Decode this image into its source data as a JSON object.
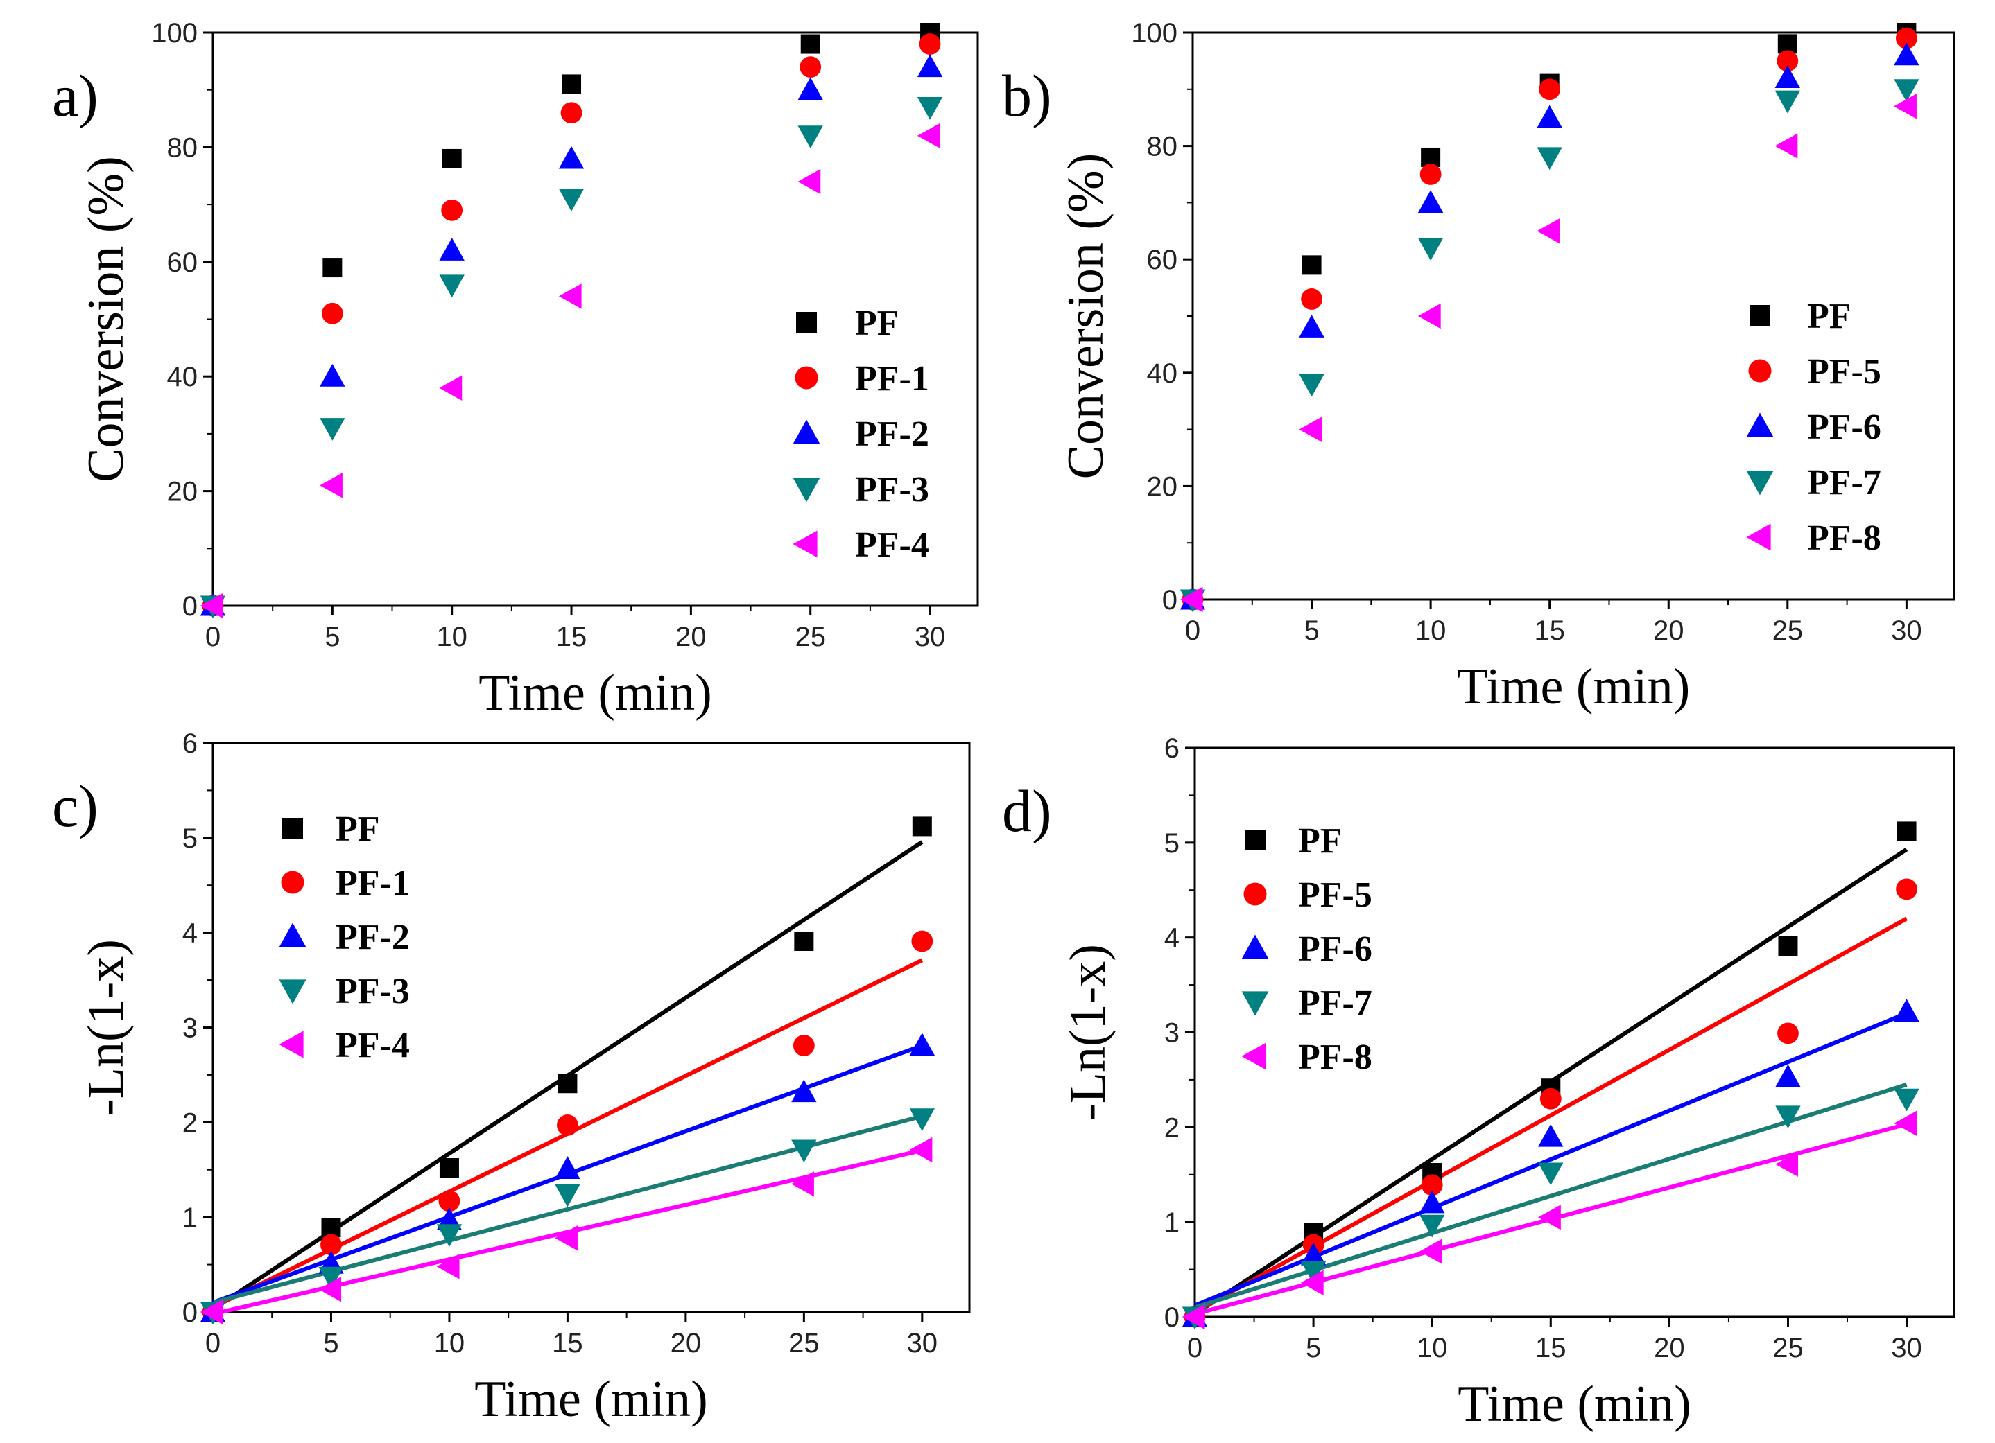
{
  "chart_data": [
    {
      "type": "scatter",
      "panel_label": "a)",
      "xlabel": "Time (min)",
      "ylabel": "Conversion (%)",
      "xlim": [
        0,
        32
      ],
      "ylim": [
        0,
        100
      ],
      "xticks": [
        0,
        5,
        10,
        15,
        20,
        25,
        30
      ],
      "yticks": [
        0,
        20,
        40,
        60,
        80,
        100
      ],
      "legend_position": "middle-right",
      "series": [
        {
          "name": "PF",
          "marker": "square",
          "color": "#000000",
          "x": [
            0,
            5,
            10,
            15,
            25,
            30
          ],
          "y": [
            0,
            59,
            78,
            91,
            98,
            100
          ]
        },
        {
          "name": "PF-1",
          "marker": "circle",
          "color": "#ff0000",
          "x": [
            0,
            5,
            10,
            15,
            25,
            30
          ],
          "y": [
            0,
            51,
            69,
            86,
            94,
            98
          ]
        },
        {
          "name": "PF-2",
          "marker": "triangle-up",
          "color": "#0000ff",
          "x": [
            0,
            5,
            10,
            15,
            25,
            30
          ],
          "y": [
            0,
            40,
            62,
            78,
            90,
            94
          ]
        },
        {
          "name": "PF-3",
          "marker": "triangle-down",
          "color": "#008080",
          "x": [
            0,
            5,
            10,
            15,
            25,
            30
          ],
          "y": [
            0,
            31,
            56,
            71,
            82,
            87
          ]
        },
        {
          "name": "PF-4",
          "marker": "triangle-left",
          "color": "#ff00ff",
          "x": [
            0,
            5,
            10,
            15,
            25,
            30
          ],
          "y": [
            0,
            21,
            38,
            54,
            74,
            82
          ]
        }
      ]
    },
    {
      "type": "scatter",
      "panel_label": "b)",
      "xlabel": "Time (min)",
      "ylabel": "Conversion (%)",
      "xlim": [
        0,
        32
      ],
      "ylim": [
        0,
        100
      ],
      "xticks": [
        0,
        5,
        10,
        15,
        20,
        25,
        30
      ],
      "yticks": [
        0,
        20,
        40,
        60,
        80,
        100
      ],
      "legend_position": "lower-right",
      "series": [
        {
          "name": "PF",
          "marker": "square",
          "color": "#000000",
          "x": [
            0,
            5,
            10,
            15,
            25,
            30
          ],
          "y": [
            0,
            59,
            78,
            91,
            98,
            100
          ]
        },
        {
          "name": "PF-5",
          "marker": "circle",
          "color": "#ff0000",
          "x": [
            0,
            5,
            10,
            15,
            25,
            30
          ],
          "y": [
            0,
            53,
            75,
            90,
            95,
            99
          ]
        },
        {
          "name": "PF-6",
          "marker": "triangle-up",
          "color": "#0000ff",
          "x": [
            0,
            5,
            10,
            15,
            25,
            30
          ],
          "y": [
            0,
            48,
            70,
            85,
            92,
            96
          ]
        },
        {
          "name": "PF-7",
          "marker": "triangle-down",
          "color": "#008080",
          "x": [
            0,
            5,
            10,
            15,
            25,
            30
          ],
          "y": [
            0,
            38,
            62,
            78,
            88,
            90
          ]
        },
        {
          "name": "PF-8",
          "marker": "triangle-left",
          "color": "#ff00ff",
          "x": [
            0,
            5,
            10,
            15,
            25,
            30
          ],
          "y": [
            0,
            30,
            50,
            65,
            80,
            87
          ]
        }
      ]
    },
    {
      "type": "scatter",
      "panel_label": "c)",
      "xlabel": "Time (min)",
      "ylabel": "-Ln(1-x)",
      "xlim": [
        0,
        32
      ],
      "ylim": [
        0,
        6
      ],
      "xticks": [
        0,
        5,
        10,
        15,
        20,
        25,
        30
      ],
      "yticks": [
        0,
        1,
        2,
        3,
        4,
        5,
        6
      ],
      "legend_position": "top-left",
      "series": [
        {
          "name": "PF",
          "marker": "square",
          "color": "#000000",
          "x": [
            0,
            5,
            10,
            15,
            25,
            30
          ],
          "y": [
            0,
            0.89,
            1.52,
            2.41,
            3.91,
            5.12
          ],
          "fit": [
            0.03,
            0.1642
          ]
        },
        {
          "name": "PF-1",
          "marker": "circle",
          "color": "#ff0000",
          "x": [
            0,
            5,
            10,
            15,
            25,
            30
          ],
          "y": [
            0,
            0.71,
            1.17,
            1.97,
            2.81,
            3.91
          ],
          "fit": [
            0.05,
            0.122
          ]
        },
        {
          "name": "PF-2",
          "marker": "triangle-up",
          "color": "#0000ff",
          "x": [
            0,
            5,
            10,
            15,
            25,
            30
          ],
          "y": [
            0,
            0.51,
            0.97,
            1.51,
            2.32,
            2.81
          ],
          "fit": [
            0.1,
            0.0903
          ]
        },
        {
          "name": "PF-3",
          "marker": "triangle-down",
          "color": "#008080",
          "x": [
            0,
            5,
            10,
            15,
            25,
            30
          ],
          "y": [
            0,
            0.37,
            0.82,
            1.24,
            1.71,
            2.04
          ],
          "fit": [
            0.1,
            0.0655
          ]
        },
        {
          "name": "PF-4",
          "marker": "triangle-left",
          "color": "#ff00ff",
          "x": [
            0,
            5,
            10,
            15,
            25,
            30
          ],
          "y": [
            0,
            0.24,
            0.48,
            0.78,
            1.35,
            1.71
          ],
          "fit": [
            -0.02,
            0.0575
          ]
        }
      ]
    },
    {
      "type": "scatter",
      "panel_label": "d)",
      "xlabel": "Time (min)",
      "ylabel": "-Ln(1-x)",
      "xlim": [
        0,
        32
      ],
      "ylim": [
        0,
        6
      ],
      "xticks": [
        0,
        5,
        10,
        15,
        20,
        25,
        30
      ],
      "yticks": [
        0,
        1,
        2,
        3,
        4,
        5,
        6
      ],
      "legend_position": "top-left",
      "series": [
        {
          "name": "PF",
          "marker": "square",
          "color": "#000000",
          "x": [
            0,
            5,
            10,
            15,
            25,
            30
          ],
          "y": [
            0,
            0.89,
            1.52,
            2.41,
            3.91,
            5.12
          ],
          "fit": [
            0.03,
            0.1633
          ]
        },
        {
          "name": "PF-5",
          "marker": "circle",
          "color": "#ff0000",
          "x": [
            0,
            5,
            10,
            15,
            25,
            30
          ],
          "y": [
            0,
            0.76,
            1.39,
            2.3,
            2.99,
            4.51
          ],
          "fit": [
            0.05,
            0.1383
          ]
        },
        {
          "name": "PF-6",
          "marker": "triangle-up",
          "color": "#0000ff",
          "x": [
            0,
            5,
            10,
            15,
            25,
            30
          ],
          "y": [
            0,
            0.65,
            1.2,
            1.9,
            2.53,
            3.22
          ],
          "fit": [
            0.12,
            0.1027
          ]
        },
        {
          "name": "PF-7",
          "marker": "triangle-down",
          "color": "#008080",
          "x": [
            0,
            5,
            10,
            15,
            25,
            30
          ],
          "y": [
            0,
            0.48,
            0.97,
            1.52,
            2.12,
            2.3
          ],
          "fit": [
            0.1,
            0.0783
          ]
        },
        {
          "name": "PF-8",
          "marker": "triangle-left",
          "color": "#ff00ff",
          "x": [
            0,
            5,
            10,
            15,
            25,
            30
          ],
          "y": [
            0,
            0.36,
            0.69,
            1.05,
            1.61,
            2.04
          ],
          "fit": [
            0.03,
            0.0667
          ]
        }
      ]
    }
  ]
}
